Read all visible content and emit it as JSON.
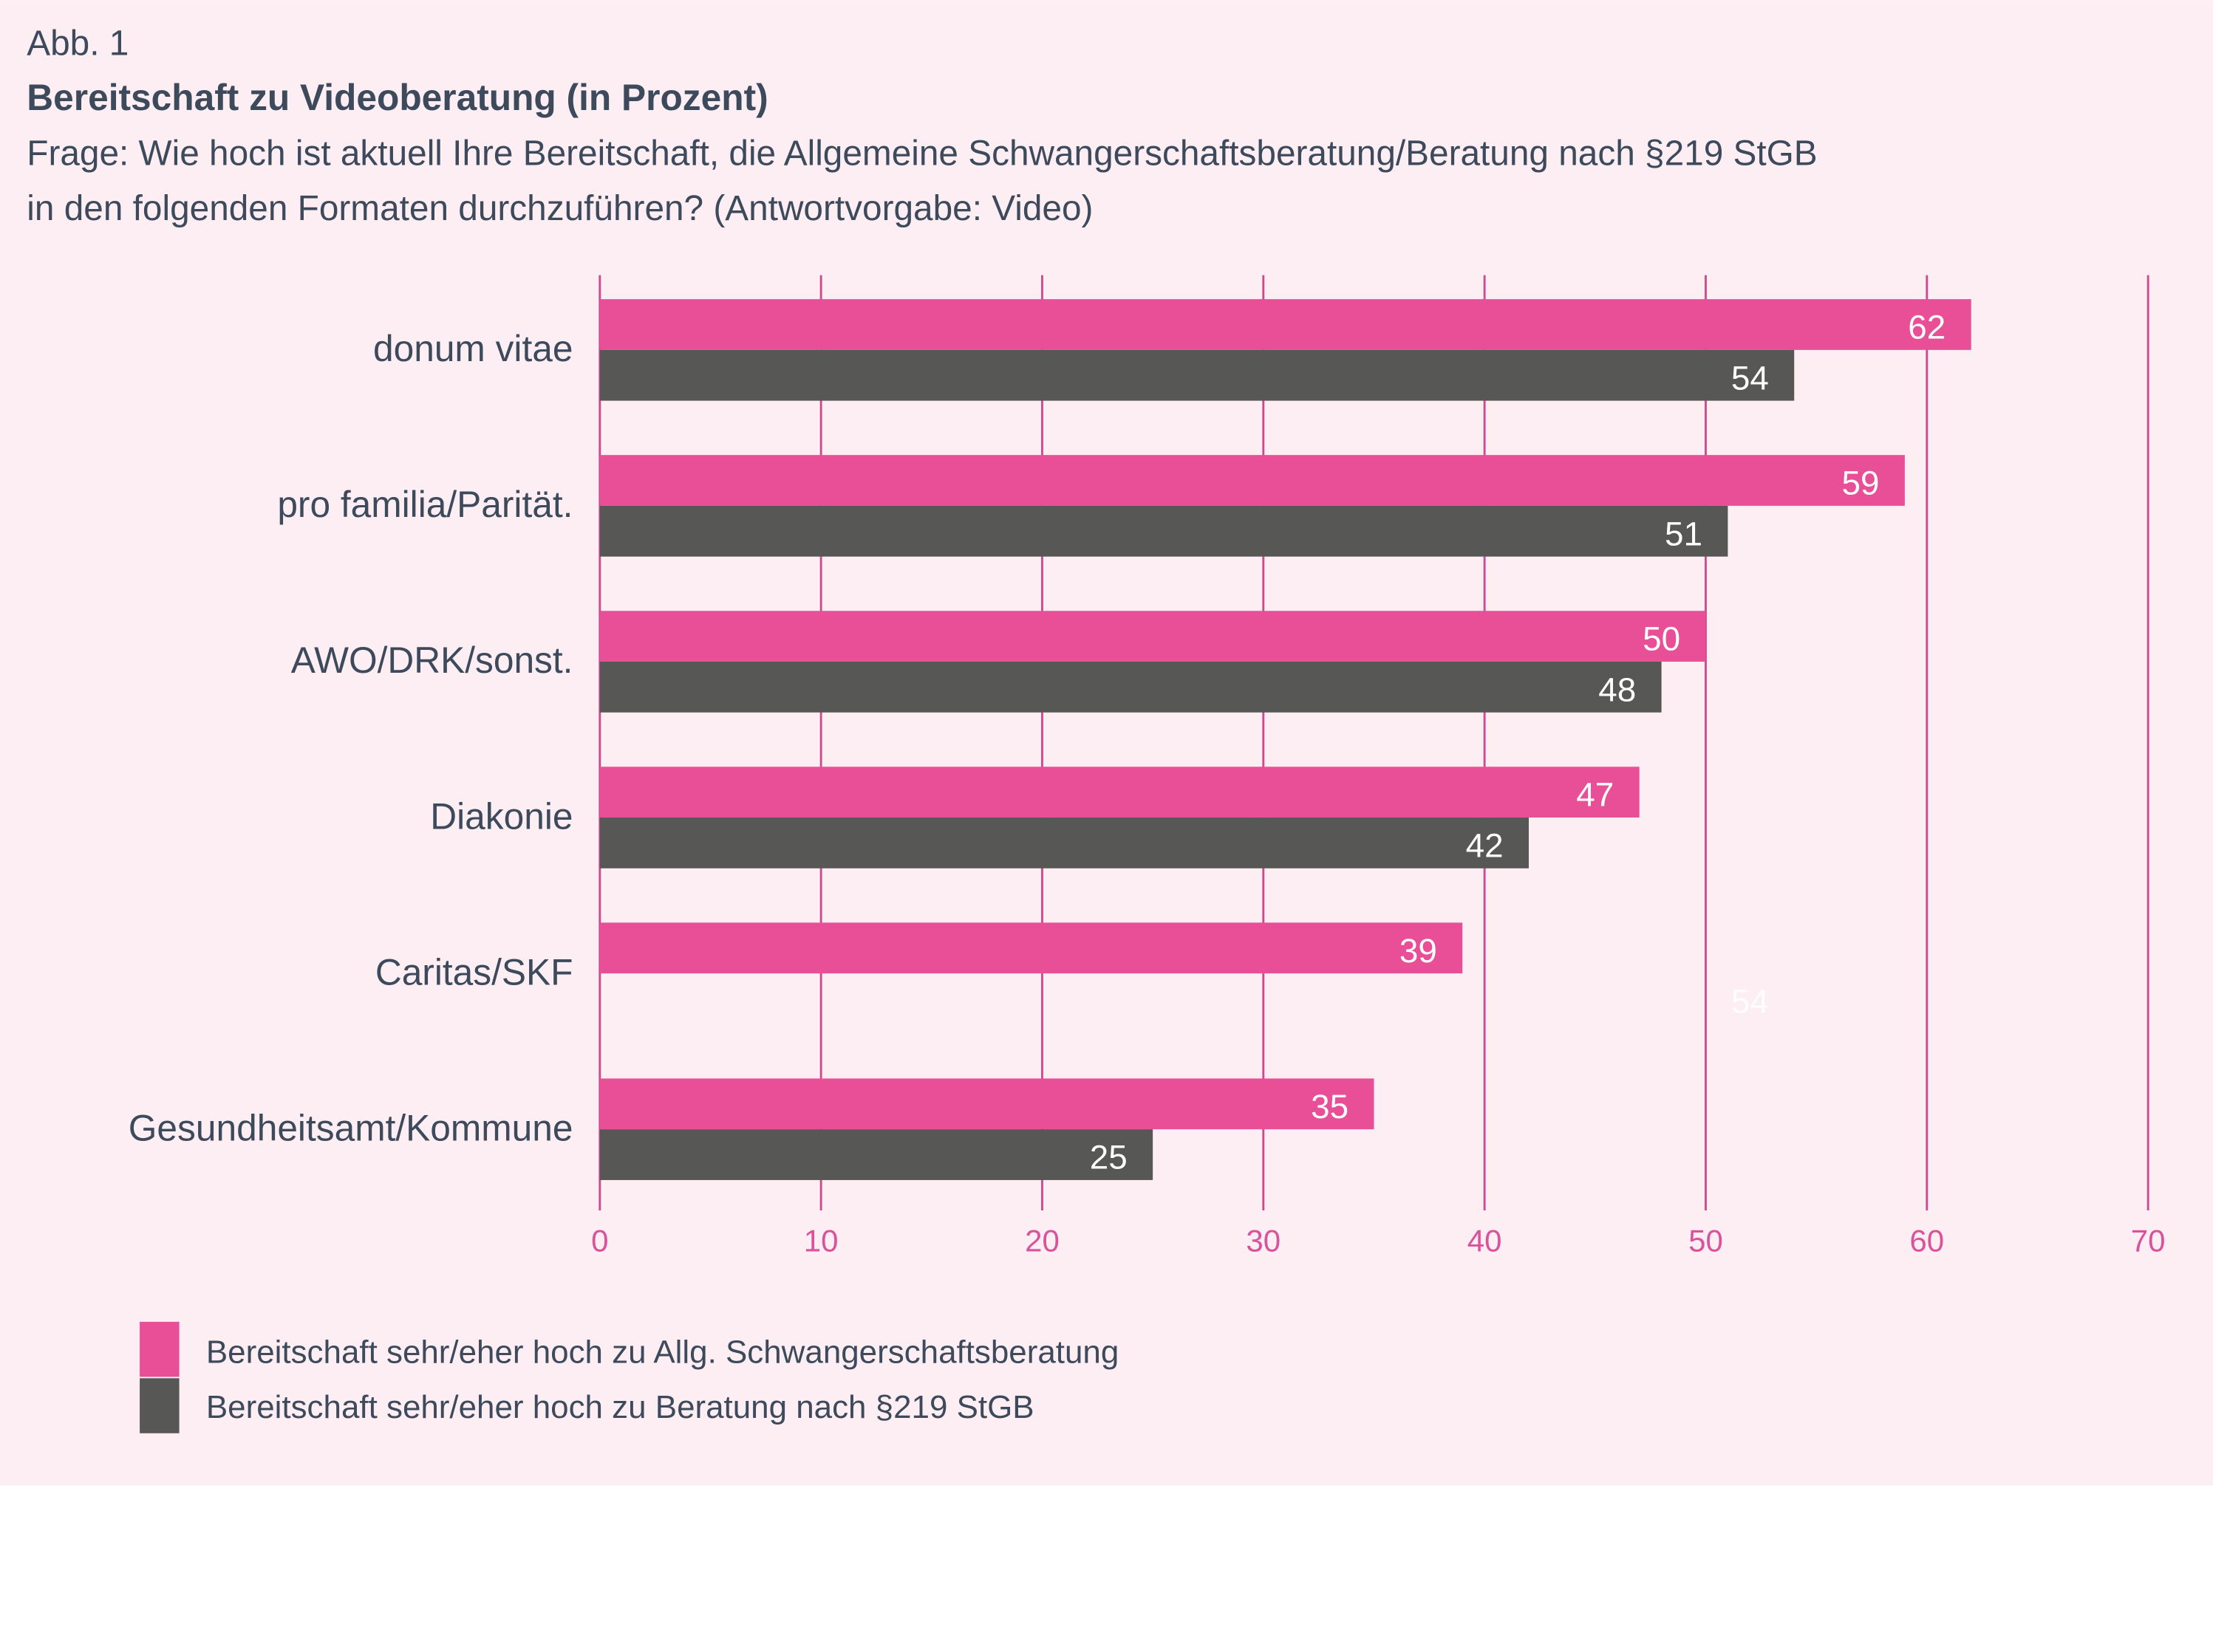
{
  "figure_label": "Abb. 1",
  "colors": {
    "background": "#fdeef3",
    "pink": "#e84f96",
    "gray": "#575756",
    "grid": "#cf4a8d",
    "text": "#3d4a5c",
    "tick": "#d9529a"
  },
  "chart_data": {
    "type": "bar",
    "orientation": "horizontal",
    "title": "Bereitschaft zu Videoberatung (in Prozent)",
    "subtitle_lines": [
      "Frage: Wie hoch ist aktuell Ihre Bereitschaft, die Allgemeine Schwangerschaftsberatung/Beratung nach §219 StGB",
      "in den folgenden Formaten durchzuführen? (Antwortvorgabe: Video)"
    ],
    "categories": [
      "donum vitae",
      "pro familia/Parität.",
      "AWO/DRK/sonst.",
      "Diakonie",
      "Caritas/SKF",
      "Gesundheitsamt/Kommune"
    ],
    "series": [
      {
        "name": "Bereitschaft sehr/eher hoch zu Allg. Schwangerschaftsberatung",
        "color": "#e84f96",
        "values": [
          62,
          59,
          50,
          47,
          39,
          35
        ]
      },
      {
        "name": "Bereitschaft sehr/eher hoch zu Beratung nach §219 StGB",
        "color": "#575756",
        "values": [
          54,
          51,
          48,
          42,
          null,
          25
        ]
      }
    ],
    "stray_label": {
      "category": "Caritas/SKF",
      "text": "54",
      "value": 54
    },
    "xlim": [
      0,
      70
    ],
    "xticks": [
      "0",
      "10",
      "20",
      "30",
      "40",
      "50",
      "60",
      "70"
    ],
    "grid": true,
    "legend_position": "bottom-left"
  }
}
